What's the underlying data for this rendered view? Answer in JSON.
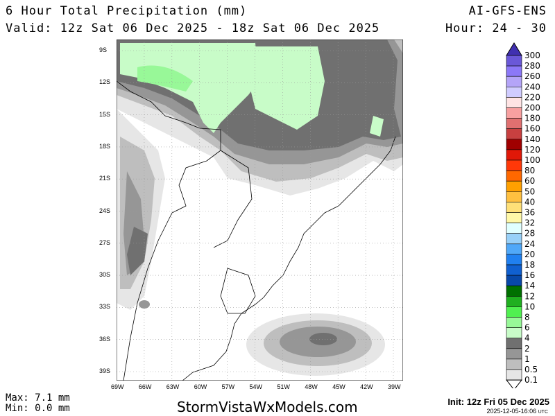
{
  "header": {
    "title": "6 Hour Total Precipitation (mm)",
    "valid": "Valid: 12z Sat 06 Dec 2025 - 18z Sat 06 Dec 2025",
    "model": "AI-GFS-ENS",
    "hour": "Hour: 24 - 30"
  },
  "map": {
    "lat_labels": [
      "9S",
      "12S",
      "15S",
      "18S",
      "21S",
      "24S",
      "27S",
      "30S",
      "33S",
      "36S",
      "39S"
    ],
    "lon_labels": [
      "69W",
      "66W",
      "63W",
      "60W",
      "57W",
      "54W",
      "51W",
      "48W",
      "45W",
      "42W",
      "39W"
    ]
  },
  "legend": {
    "labels": [
      "300",
      "280",
      "260",
      "240",
      "220",
      "200",
      "180",
      "160",
      "140",
      "120",
      "100",
      "80",
      "60",
      "50",
      "40",
      "36",
      "32",
      "28",
      "24",
      "20",
      "18",
      "16",
      "14",
      "12",
      "10",
      "8",
      "6",
      "4",
      "2",
      "1",
      "0.5",
      "0.1"
    ],
    "colors": [
      "#6a58d8",
      "#8c78f8",
      "#b4a4f8",
      "#d0ccff",
      "#ffe4e4",
      "#f8a0a0",
      "#e07070",
      "#c84040",
      "#a00000",
      "#e01808",
      "#ff3808",
      "#ff6800",
      "#ffa000",
      "#ffc040",
      "#ffe078",
      "#fff8a8",
      "#e0ffff",
      "#98d0f8",
      "#50a8f8",
      "#2080f0",
      "#1060d0",
      "#0848a8",
      "#007000",
      "#20b020",
      "#50f050",
      "#98f898",
      "#c8fcc8",
      "#707070",
      "#969696",
      "#bebebe",
      "#e6e6e6"
    ],
    "top_color": "#4030b0"
  },
  "footer": {
    "max": "Max: 7.1 mm",
    "min": "Min: 0.0 mm",
    "site": "StormVistaWxModels.com",
    "init": "Init: 12z Fri 05 Dec 2025",
    "stamp": "2025-12-05-16:06",
    "utc": "UTC"
  }
}
